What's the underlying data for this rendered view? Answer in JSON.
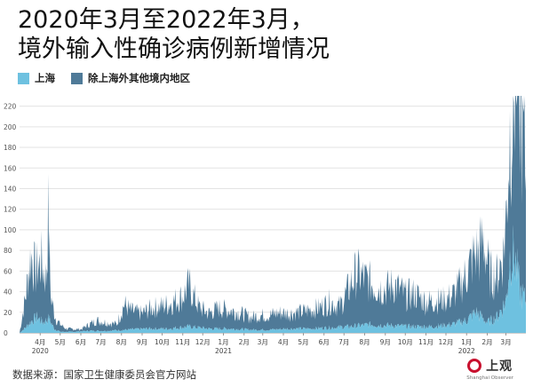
{
  "header": {
    "title_line1": "2020年3月至2022年3月，",
    "title_line2": "境外输入性确诊病例新增情况"
  },
  "colors": {
    "shanghai": "#6ec1e0",
    "other": "#4f7a98",
    "brand_red": "#c8102e"
  },
  "footer": {
    "source": "数据来源：国家卫生健康委员会官方网站",
    "logo_text": "上观",
    "logo_sub": "Shanghai Observer"
  },
  "chart_data": {
    "type": "area",
    "stacked": true,
    "title": "",
    "xlabel": "",
    "ylabel": "",
    "x_range": [
      "2020-03-01",
      "2022-03-31"
    ],
    "ylim": [
      0,
      230
    ],
    "yticks": [
      0,
      20,
      40,
      60,
      80,
      100,
      120,
      140,
      160,
      180,
      200,
      220
    ],
    "grid": true,
    "legend_position": "top-left",
    "month_ticks": [
      "4月",
      "5月",
      "6月",
      "7月",
      "8月",
      "9月",
      "10月",
      "11月",
      "12月",
      "1月",
      "2月",
      "3月",
      "4月",
      "5月",
      "6月",
      "7月",
      "8月",
      "9月",
      "10月",
      "11月",
      "12月",
      "1月",
      "2月",
      "3月"
    ],
    "year_labels": [
      "2020",
      "2021",
      "2022"
    ],
    "series": [
      {
        "name": "上海",
        "points": [
          [
            "2020-03-01",
            0
          ],
          [
            "2020-03-10",
            5
          ],
          [
            "2020-03-20",
            12
          ],
          [
            "2020-03-28",
            15
          ],
          [
            "2020-04-05",
            10
          ],
          [
            "2020-04-14",
            14
          ],
          [
            "2020-04-22",
            4
          ],
          [
            "2020-05-01",
            1
          ],
          [
            "2020-05-20",
            1
          ],
          [
            "2020-06-15",
            2
          ],
          [
            "2020-07-10",
            2
          ],
          [
            "2020-08-10",
            3
          ],
          [
            "2020-09-10",
            4
          ],
          [
            "2020-10-10",
            4
          ],
          [
            "2020-11-10",
            6
          ],
          [
            "2020-12-10",
            4
          ],
          [
            "2021-01-10",
            4
          ],
          [
            "2021-02-10",
            3
          ],
          [
            "2021-03-10",
            3
          ],
          [
            "2021-04-10",
            4
          ],
          [
            "2021-05-10",
            4
          ],
          [
            "2021-06-10",
            5
          ],
          [
            "2021-07-10",
            6
          ],
          [
            "2021-08-10",
            8
          ],
          [
            "2021-09-10",
            7
          ],
          [
            "2021-10-10",
            6
          ],
          [
            "2021-11-10",
            6
          ],
          [
            "2021-12-10",
            8
          ],
          [
            "2022-01-01",
            12
          ],
          [
            "2022-01-15",
            20
          ],
          [
            "2022-02-01",
            10
          ],
          [
            "2022-02-15",
            15
          ],
          [
            "2022-03-01",
            30
          ],
          [
            "2022-03-08",
            80
          ],
          [
            "2022-03-15",
            70
          ],
          [
            "2022-03-22",
            40
          ],
          [
            "2022-03-31",
            30
          ]
        ]
      },
      {
        "name": "除上海外其他境内地区",
        "points": [
          [
            "2020-03-01",
            0
          ],
          [
            "2020-03-10",
            30
          ],
          [
            "2020-03-18",
            65
          ],
          [
            "2020-03-25",
            45
          ],
          [
            "2020-04-03",
            58
          ],
          [
            "2020-04-10",
            40
          ],
          [
            "2020-04-13",
            98
          ],
          [
            "2020-04-17",
            25
          ],
          [
            "2020-04-25",
            10
          ],
          [
            "2020-05-10",
            3
          ],
          [
            "2020-06-01",
            2
          ],
          [
            "2020-06-10",
            5
          ],
          [
            "2020-06-25",
            10
          ],
          [
            "2020-07-10",
            8
          ],
          [
            "2020-07-25",
            6
          ],
          [
            "2020-08-05",
            25
          ],
          [
            "2020-08-15",
            18
          ],
          [
            "2020-09-01",
            15
          ],
          [
            "2020-09-15",
            20
          ],
          [
            "2020-10-01",
            22
          ],
          [
            "2020-10-15",
            25
          ],
          [
            "2020-11-01",
            30
          ],
          [
            "2020-11-10",
            40
          ],
          [
            "2020-11-25",
            20
          ],
          [
            "2020-12-10",
            15
          ],
          [
            "2020-12-25",
            20
          ],
          [
            "2021-01-10",
            18
          ],
          [
            "2021-01-25",
            16
          ],
          [
            "2021-02-10",
            12
          ],
          [
            "2021-02-25",
            14
          ],
          [
            "2021-03-10",
            14
          ],
          [
            "2021-03-25",
            16
          ],
          [
            "2021-04-10",
            15
          ],
          [
            "2021-04-25",
            16
          ],
          [
            "2021-05-10",
            18
          ],
          [
            "2021-05-25",
            20
          ],
          [
            "2021-06-10",
            25
          ],
          [
            "2021-06-25",
            20
          ],
          [
            "2021-07-10",
            40
          ],
          [
            "2021-07-20",
            52
          ],
          [
            "2021-08-01",
            45
          ],
          [
            "2021-08-15",
            38
          ],
          [
            "2021-09-01",
            35
          ],
          [
            "2021-09-15",
            40
          ],
          [
            "2021-10-01",
            30
          ],
          [
            "2021-10-15",
            32
          ],
          [
            "2021-11-01",
            24
          ],
          [
            "2021-11-15",
            25
          ],
          [
            "2021-12-01",
            25
          ],
          [
            "2021-12-15",
            30
          ],
          [
            "2022-01-01",
            45
          ],
          [
            "2022-01-10",
            55
          ],
          [
            "2022-01-20",
            60
          ],
          [
            "2022-01-26",
            78
          ],
          [
            "2022-02-05",
            45
          ],
          [
            "2022-02-15",
            40
          ],
          [
            "2022-02-25",
            50
          ],
          [
            "2022-03-05",
            110
          ],
          [
            "2022-03-12",
            150
          ],
          [
            "2022-03-18",
            228
          ],
          [
            "2022-03-25",
            170
          ],
          [
            "2022-03-31",
            120
          ]
        ]
      }
    ]
  }
}
